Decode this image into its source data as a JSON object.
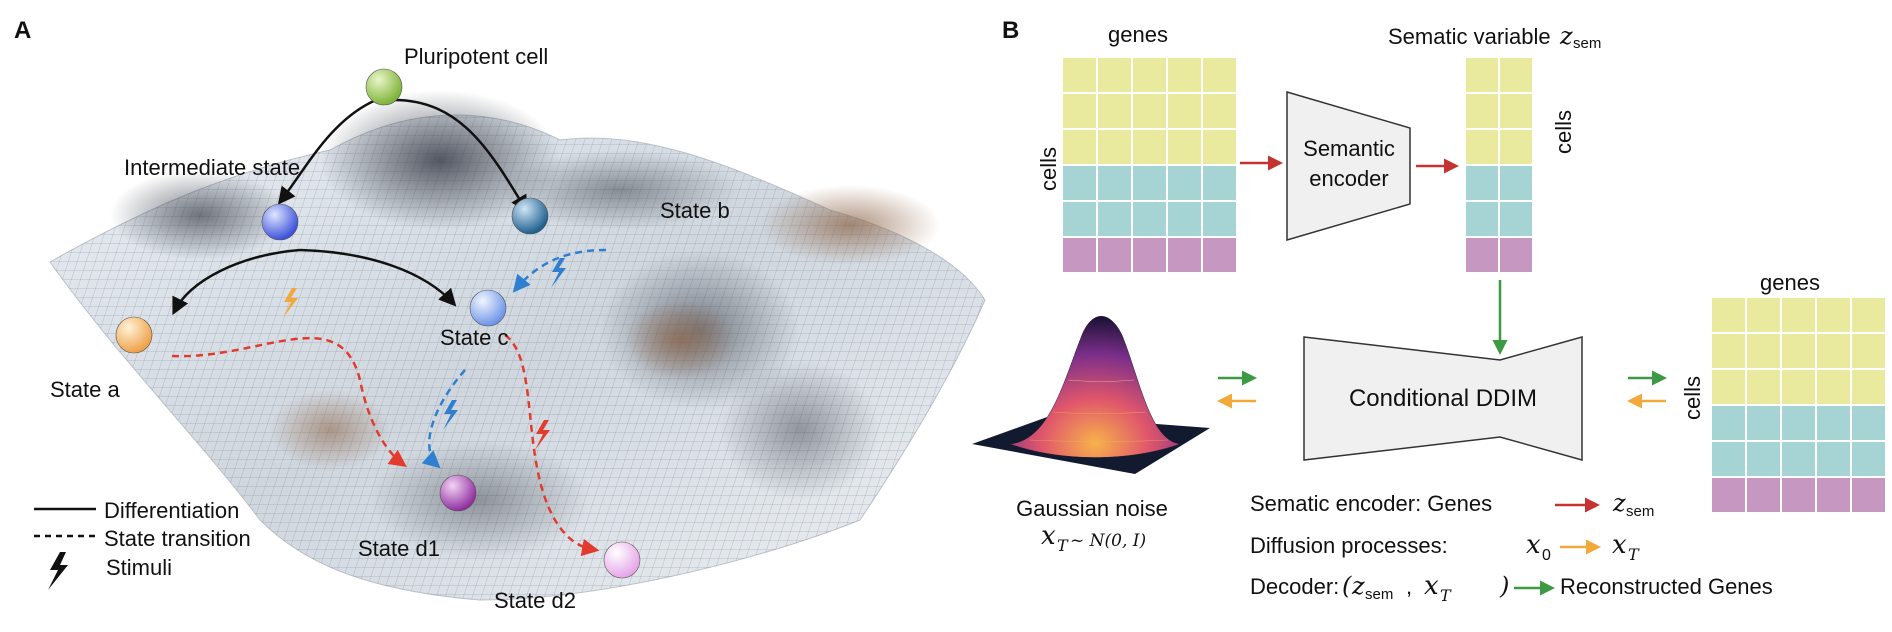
{
  "panel_a": {
    "letter": "A",
    "pluripotent": "Pluripotent cell",
    "intermediate": "Intermediate state",
    "state_a": "State a",
    "state_b": "State b",
    "state_c": "State c",
    "state_d1": "State d1",
    "state_d2": "State d2",
    "legend": {
      "differentiation": "Differentiation",
      "transition": "State transition",
      "stimuli": "Stimuli"
    }
  },
  "panel_b": {
    "letter": "B",
    "genes_left": "genes",
    "cells_left": "cells",
    "encoder_line1": "Semantic",
    "encoder_line2": "encoder",
    "semantic_var": "Sematic variable",
    "z_sem": "z",
    "z_sub": "sem",
    "cells_mid": "cells",
    "genes_right": "genes",
    "cells_right": "cells",
    "ddim": "Conditional DDIM",
    "noise_label": "Gaussian noise",
    "noise_x": "x",
    "noise_T": "T",
    "noise_dist": "~ N(0, I)",
    "eq1_text": "Sematic encoder: Genes",
    "eq2_text": "Diffusion processes:",
    "eq2_x0": "x",
    "eq2_0": "0",
    "eq2_xT": "x",
    "eq2_T": "T",
    "eq3_text": "Decoder:",
    "eq3_open": "(",
    "eq3_comma": ",",
    "eq3_close": ")",
    "eq3_out": "Reconstructed Genes"
  },
  "colors": {
    "yellow": "#e9ea9d",
    "teal": "#a6d4d4",
    "purple": "#c697c1",
    "red_arrow": "#c43232",
    "green_arrow": "#3b9a43",
    "orange_arrow": "#f2a93b",
    "blue_dashed": "#2f7fd0",
    "red_dashed": "#e23b2e"
  }
}
